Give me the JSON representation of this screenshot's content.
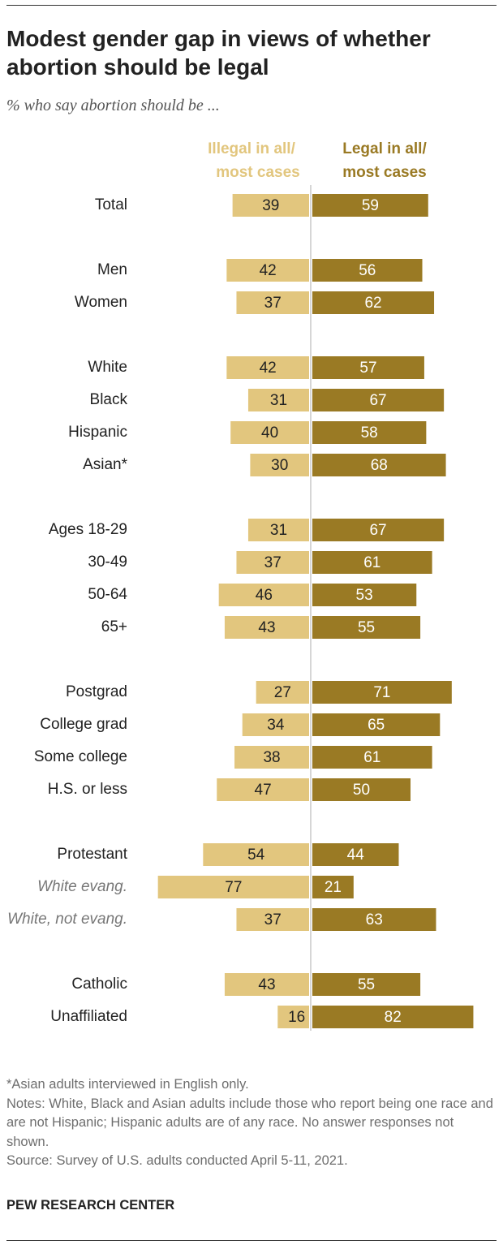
{
  "title": "Modest gender gap in views of whether abortion should be legal",
  "subtitle": "% who say abortion should be ...",
  "notes": {
    "footnote": "*Asian adults interviewed in English only.",
    "notes": "Notes: White, Black and Asian adults include those who report being one race and are not Hispanic; Hispanic adults are of any race. No answer responses not shown.",
    "source": "Source: Survey of U.S. adults conducted April 5-11, 2021."
  },
  "brand": "PEW RESEARCH CENTER",
  "colors": {
    "illegal": "#e2c67e",
    "legal": "#9a7a24",
    "text": "#222222",
    "italic_label": "#777777"
  },
  "chart_data": {
    "type": "bar",
    "orientation": "horizontal-diverging",
    "series": [
      {
        "name_lines": [
          "Illegal in all/",
          "most cases"
        ],
        "color": "#e2c67e"
      },
      {
        "name_lines": [
          "Legal in all/",
          "most cases"
        ],
        "color": "#9a7a24"
      }
    ],
    "rows": [
      {
        "label": "Total",
        "illegal": 39,
        "legal": 59,
        "group": 0
      },
      {
        "label": "Men",
        "illegal": 42,
        "legal": 56,
        "group": 1
      },
      {
        "label": "Women",
        "illegal": 37,
        "legal": 62,
        "group": 1
      },
      {
        "label": "White",
        "illegal": 42,
        "legal": 57,
        "group": 2
      },
      {
        "label": "Black",
        "illegal": 31,
        "legal": 67,
        "group": 2
      },
      {
        "label": "Hispanic",
        "illegal": 40,
        "legal": 58,
        "group": 2
      },
      {
        "label": "Asian*",
        "illegal": 30,
        "legal": 68,
        "group": 2
      },
      {
        "label": "Ages 18-29",
        "illegal": 31,
        "legal": 67,
        "group": 3
      },
      {
        "label": "30-49",
        "illegal": 37,
        "legal": 61,
        "group": 3
      },
      {
        "label": "50-64",
        "illegal": 46,
        "legal": 53,
        "group": 3
      },
      {
        "label": "65+",
        "illegal": 43,
        "legal": 55,
        "group": 3
      },
      {
        "label": "Postgrad",
        "illegal": 27,
        "legal": 71,
        "group": 4
      },
      {
        "label": "College grad",
        "illegal": 34,
        "legal": 65,
        "group": 4
      },
      {
        "label": "Some college",
        "illegal": 38,
        "legal": 61,
        "group": 4
      },
      {
        "label": "H.S. or less",
        "illegal": 47,
        "legal": 50,
        "group": 4
      },
      {
        "label": "Protestant",
        "illegal": 54,
        "legal": 44,
        "group": 5
      },
      {
        "label": "White evang.",
        "illegal": 77,
        "legal": 21,
        "group": 5,
        "italic": true
      },
      {
        "label": "White, not evang.",
        "illegal": 37,
        "legal": 63,
        "group": 5,
        "italic": true
      },
      {
        "label": "Catholic",
        "illegal": 43,
        "legal": 55,
        "group": 6
      },
      {
        "label": "Unaffiliated",
        "illegal": 16,
        "legal": 82,
        "group": 6
      }
    ]
  }
}
